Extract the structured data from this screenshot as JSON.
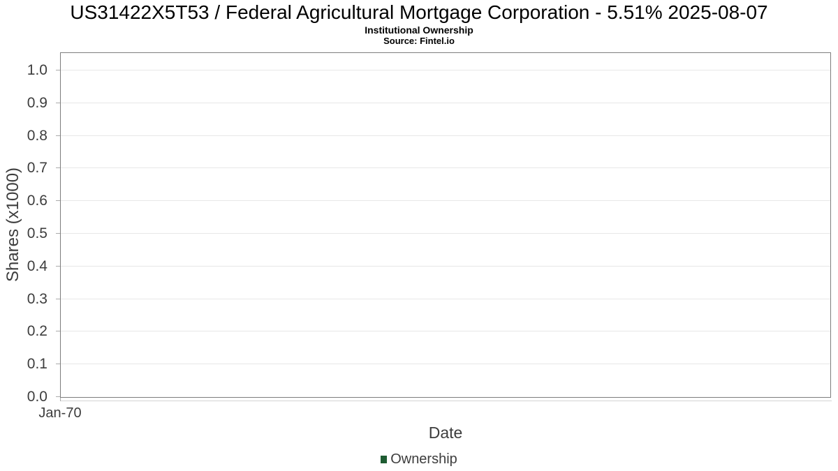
{
  "chart_data": {
    "type": "line",
    "title": "US31422X5T53 / Federal Agricultural Mortgage Corporation - 5.51% 2025-08-07",
    "subtitle": "Institutional Ownership",
    "source": "Source: Fintel.io",
    "xlabel": "Date",
    "ylabel": "Shares (x1000)",
    "x_tick_labels": [
      "Jan-70"
    ],
    "y_tick_labels": [
      "0.0",
      "0.1",
      "0.2",
      "0.3",
      "0.4",
      "0.5",
      "0.6",
      "0.7",
      "0.8",
      "0.9",
      "1.0"
    ],
    "ylim": [
      0.0,
      1.06
    ],
    "grid": true,
    "gridlines": "horizontal",
    "legend_position": "bottom",
    "legend": [
      {
        "label": "Ownership",
        "color": "#1e5c32"
      }
    ],
    "series": [
      {
        "name": "Ownership",
        "x": [],
        "values": []
      }
    ]
  }
}
